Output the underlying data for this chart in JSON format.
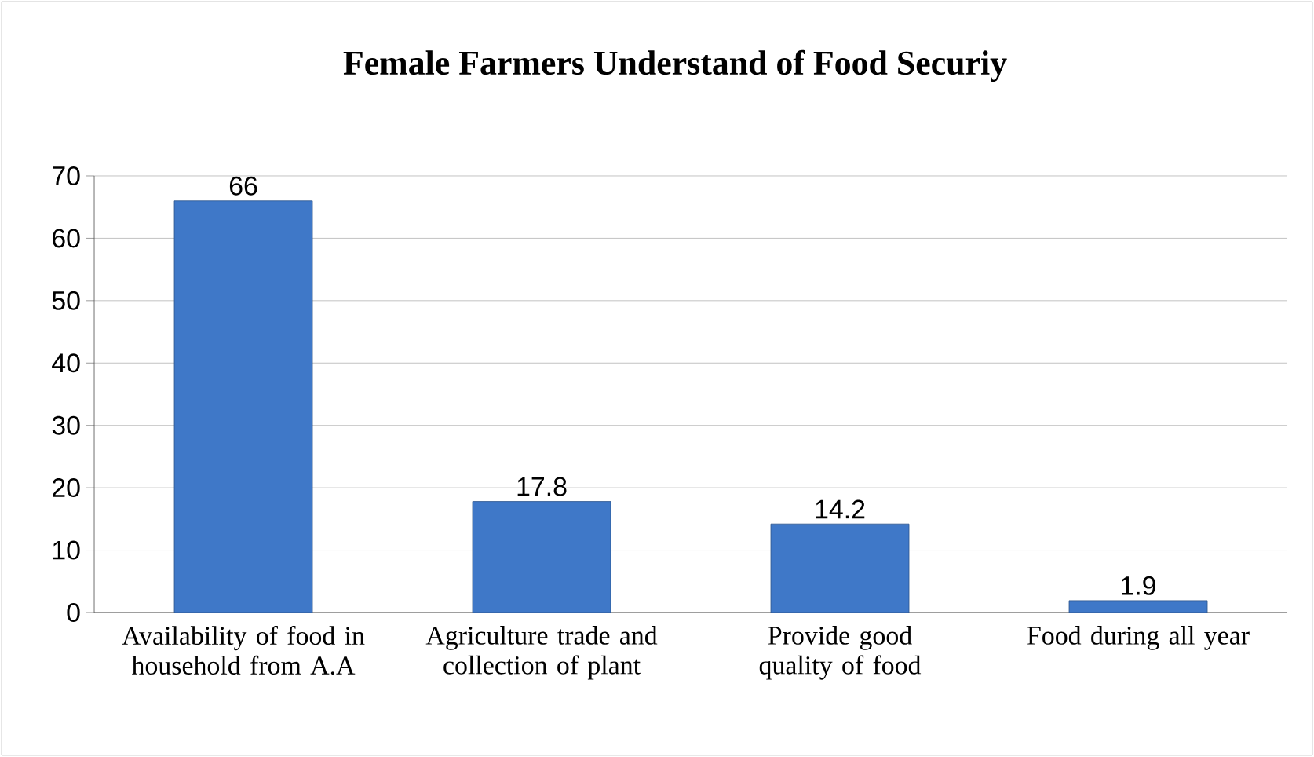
{
  "chart_data": {
    "type": "bar",
    "title": "Female Farmers Understand of Food Securiy",
    "categories": [
      "Availability of food in household from A.A",
      "Agriculture trade and collection of plant",
      "Provide good quality of food",
      "Food during all year"
    ],
    "values": [
      66,
      17.8,
      14.2,
      1.9
    ],
    "color": "#3f78c8",
    "data_labels": true,
    "ylim": [
      0,
      70
    ],
    "yticks": [
      0,
      10,
      20,
      30,
      40,
      50,
      60,
      70
    ],
    "grid": "y"
  }
}
